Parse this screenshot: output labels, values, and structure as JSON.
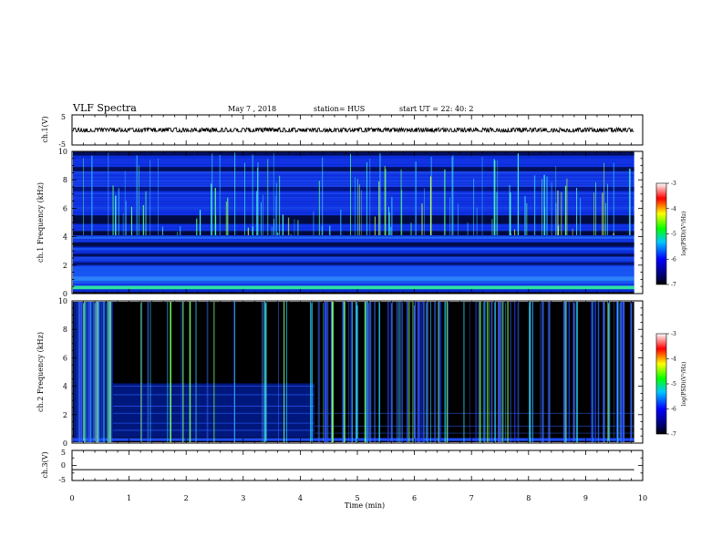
{
  "header": {
    "title": "VLF Spectra",
    "date": "May 7 , 2018",
    "station": "station= HUS",
    "start": "start UT = 22: 40: 2"
  },
  "chart_data": [
    {
      "type": "line",
      "panel": "ch1-waveform",
      "ylabel": "ch.1(V)",
      "ylim": [
        -5,
        5
      ],
      "yticks": [
        "5",
        "-5"
      ],
      "xlim": [
        0,
        10
      ],
      "series": [
        {
          "x": [
            0,
            9.85
          ],
          "values": [
            0,
            0
          ],
          "band": 0.5
        }
      ]
    },
    {
      "type": "heatmap",
      "panel": "ch1-spectrogram",
      "ylabel": "ch.1\nFrequency (kHz)",
      "ylim": [
        0,
        10
      ],
      "yticks": [
        "0",
        "2",
        "4",
        "6",
        "8",
        "10"
      ],
      "xlim": [
        0,
        10
      ],
      "data_end_min": 9.85,
      "colorbar": {
        "label": "log(PSD)(V²/Hz)",
        "range": [
          -7,
          -3
        ],
        "ticks": [
          "-3",
          "-4",
          "-5",
          "-6",
          "-7"
        ]
      }
    },
    {
      "type": "heatmap",
      "panel": "ch2-spectrogram",
      "ylabel": "ch.2\nFrequency (kHz)",
      "ylim": [
        0,
        10
      ],
      "yticks": [
        "0",
        "2",
        "4",
        "6",
        "8",
        "10"
      ],
      "xlim": [
        0,
        10
      ],
      "data_end_min": 9.85,
      "colorbar": {
        "label": "log(PSD)(V²/Hz)",
        "range": [
          -7,
          -3
        ],
        "ticks": [
          "-3",
          "-4",
          "-5",
          "-6",
          "-7"
        ]
      }
    },
    {
      "type": "line",
      "panel": "ch3-waveform",
      "ylabel": "ch.3(V)",
      "ylim": [
        -5,
        5
      ],
      "yticks": [
        "5",
        "0",
        "-5"
      ],
      "xlim": [
        0,
        10
      ],
      "xlabel": "Time (min)",
      "xticks": [
        "0",
        "1",
        "2",
        "3",
        "4",
        "5",
        "6",
        "7",
        "8",
        "9",
        "10"
      ],
      "series": [
        {
          "x": [
            0,
            9.85
          ],
          "values": [
            -1.4,
            -1.4
          ]
        }
      ]
    }
  ]
}
